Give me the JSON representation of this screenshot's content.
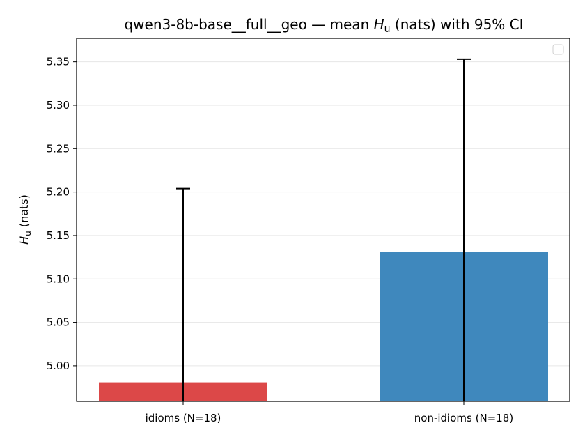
{
  "chart_data": {
    "type": "bar",
    "title_parts": {
      "prefix": "qwen3-8b-base__full__geo — mean ",
      "symbol": "H",
      "subscript": "u",
      "suffix": " (nats) with 95% CI"
    },
    "ylabel_parts": {
      "symbol": "H",
      "subscript": "u",
      "suffix": " (nats)"
    },
    "categories": [
      "idioms (N=18)",
      "non-idioms (N=18)"
    ],
    "values": [
      4.981,
      5.131
    ],
    "ci_upper": [
      5.204,
      5.353
    ],
    "bar_colors": [
      "#dc4848",
      "#3f88bd"
    ],
    "errorbar_color": "#000000",
    "ylim": [
      4.959,
      5.377
    ],
    "yticks": [
      5.0,
      5.05,
      5.1,
      5.15,
      5.2,
      5.25,
      5.3,
      5.35
    ],
    "ytick_labels": [
      "5.00",
      "5.05",
      "5.10",
      "5.15",
      "5.20",
      "5.25",
      "5.30",
      "5.35"
    ],
    "grid": true,
    "legend": "top-right (empty)"
  }
}
